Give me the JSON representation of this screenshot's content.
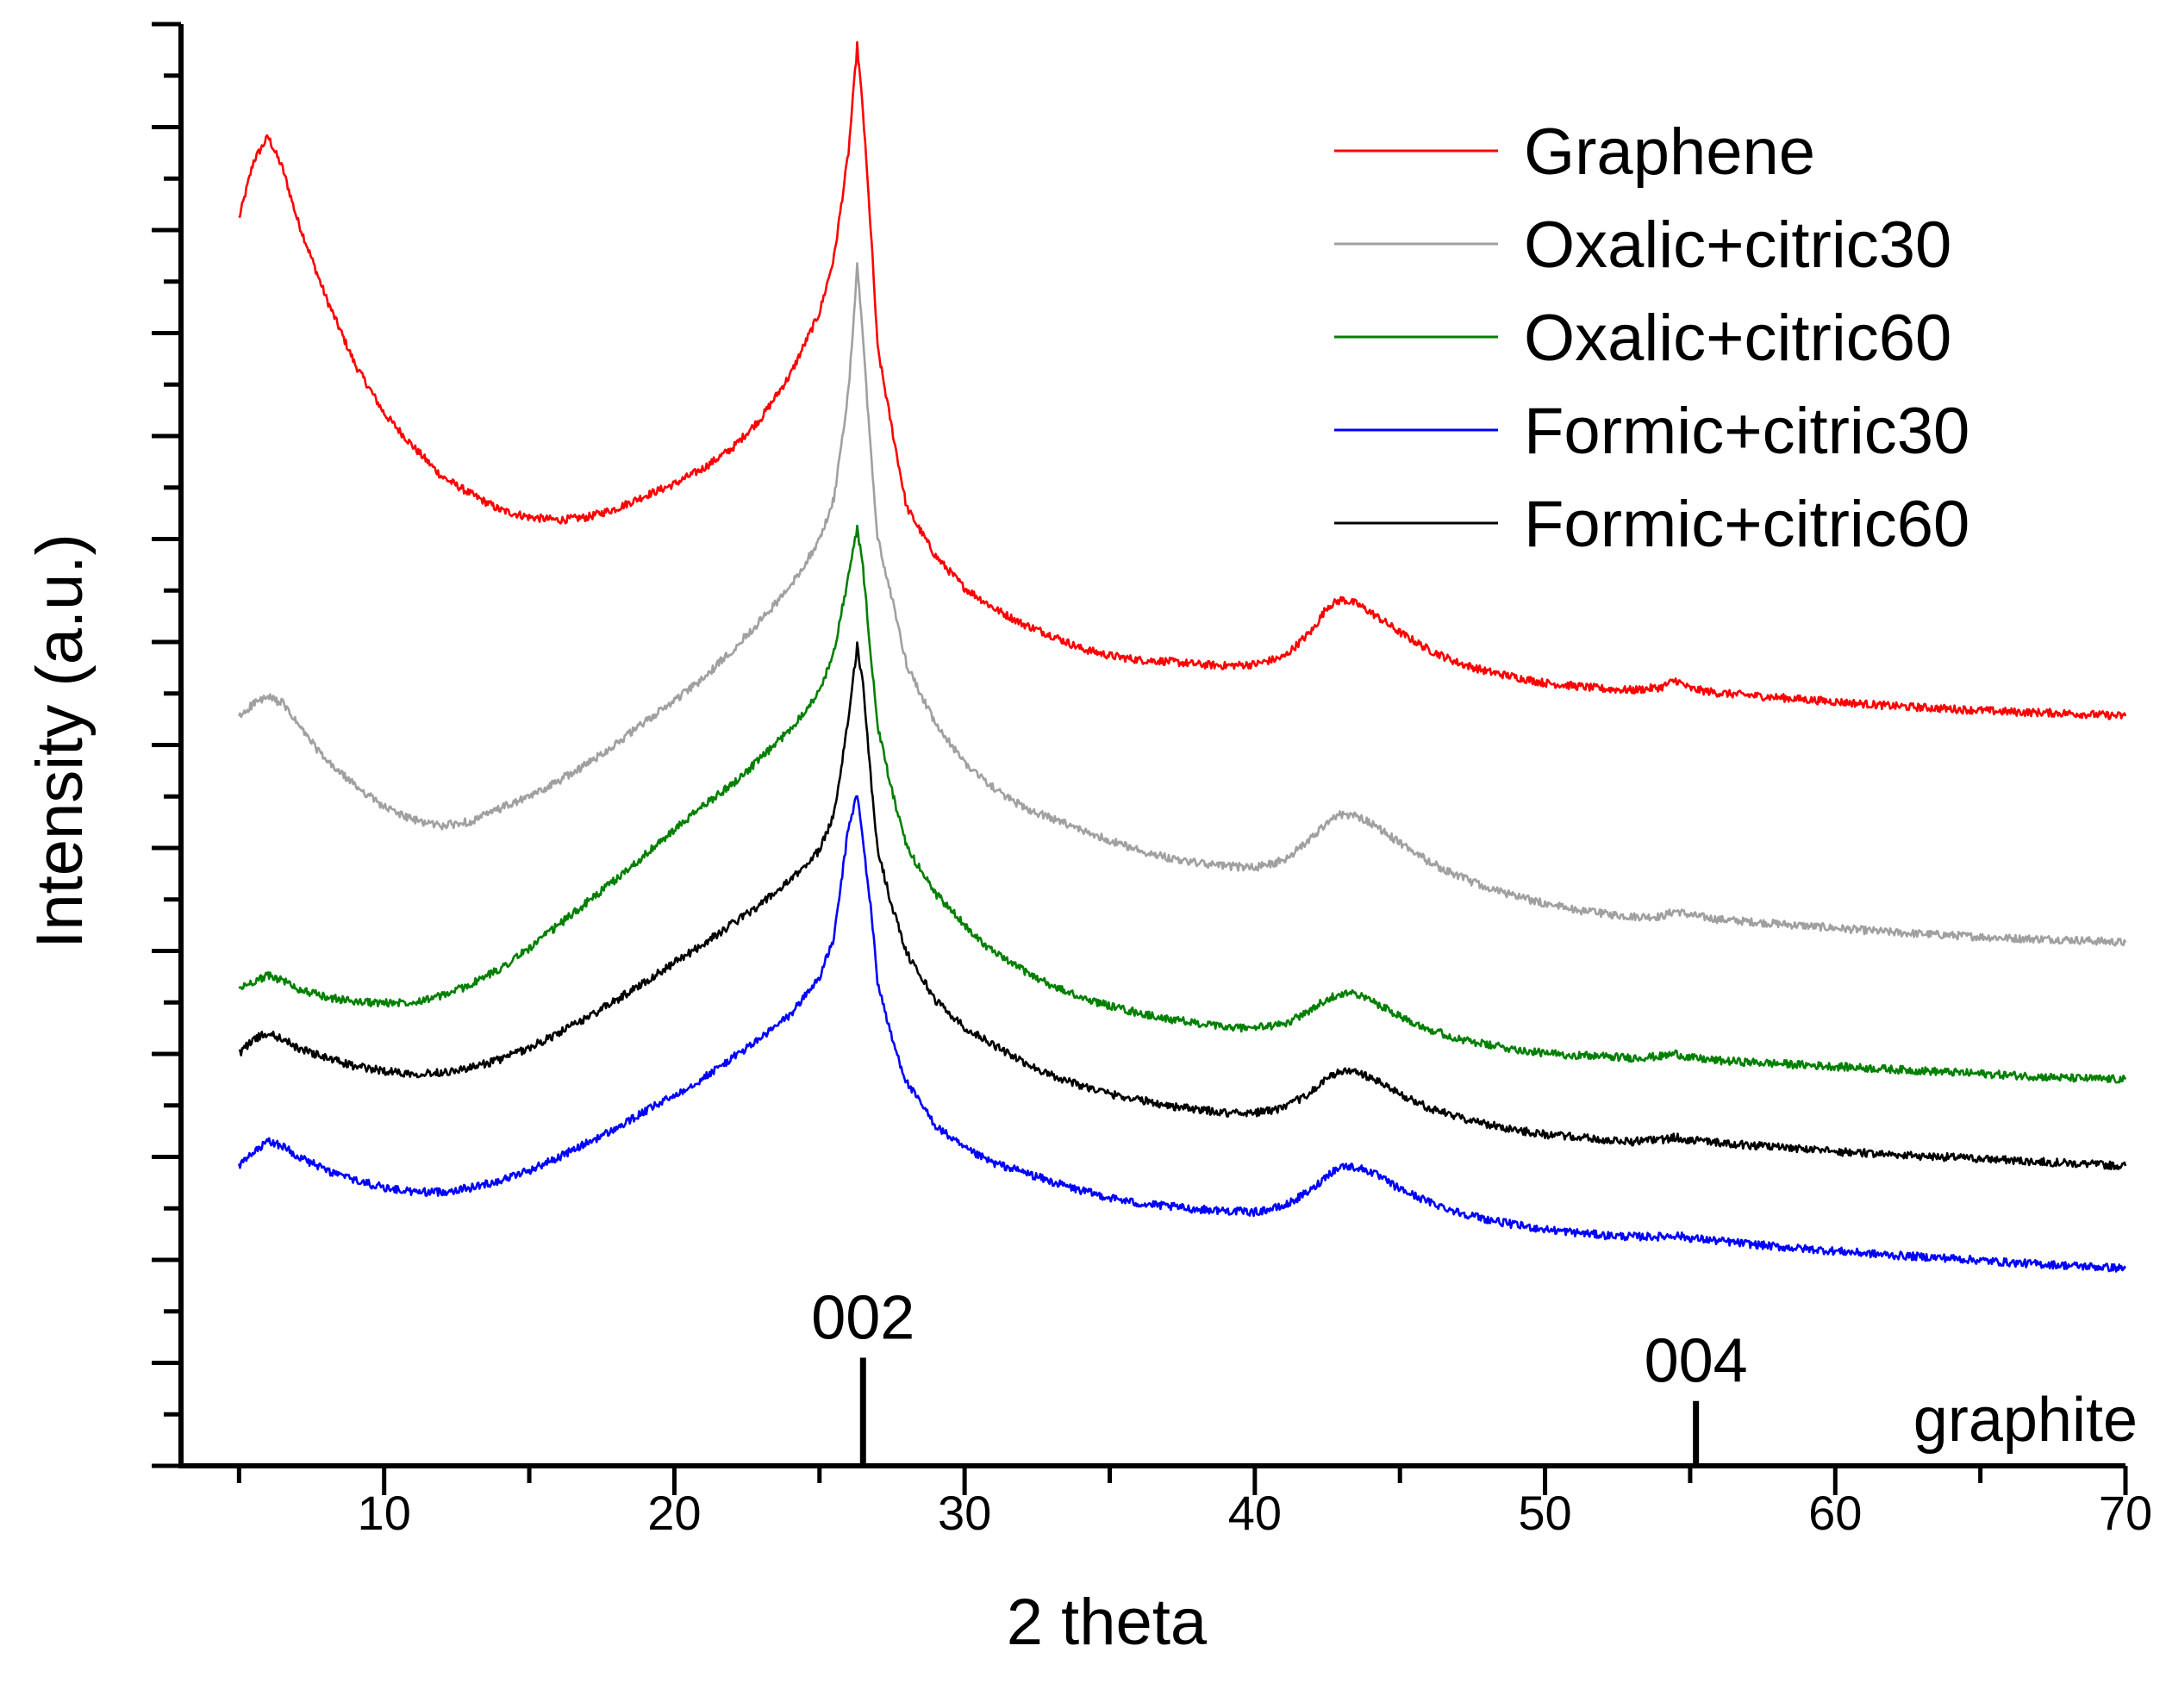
{
  "chart_data": {
    "type": "line",
    "title": "",
    "xlabel": "2 theta",
    "ylabel": "Intensity (a.u.)",
    "xlim": [
      3,
      70
    ],
    "ylim": [
      0,
      100
    ],
    "grid": false,
    "y_tick_labels_shown": false,
    "x_ticks": [
      10,
      20,
      30,
      40,
      50,
      60,
      70
    ],
    "x_tick_labels": [
      "10",
      "20",
      "30",
      "40",
      "50",
      "60",
      "70"
    ],
    "legend": {
      "position": "top-right"
    },
    "series": [
      {
        "name": "Graphene",
        "color": "#ff0000",
        "x": [
          5,
          5.5,
          6,
          6.5,
          7,
          8,
          9,
          10,
          11,
          12,
          13,
          14,
          15,
          16,
          17,
          18,
          19,
          20,
          21,
          22,
          23,
          24,
          25,
          25.5,
          26,
          26.3,
          26.5,
          26.8,
          27,
          27.5,
          28,
          29,
          30,
          31,
          32,
          33,
          34,
          35,
          36,
          37,
          38,
          39,
          40,
          41,
          42,
          42.5,
          43,
          43.5,
          44,
          45,
          46,
          47,
          48,
          49,
          50,
          51,
          52,
          53,
          54,
          54.5,
          55,
          56,
          58,
          60,
          62,
          64,
          66,
          68,
          70
        ],
        "y": [
          86.5,
          90.5,
          92.2,
          90,
          86.5,
          81,
          76.4,
          73,
          70.7,
          68.6,
          67.4,
          66.3,
          65.8,
          65.6,
          65.8,
          66.4,
          67.3,
          68.1,
          69.2,
          70.6,
          72.7,
          75.7,
          80,
          83.8,
          91.1,
          98.5,
          93.9,
          84.7,
          77.6,
          71.9,
          66.5,
          63.1,
          60.9,
          59.5,
          58.4,
          57.6,
          56.7,
          56.2,
          55.9,
          55.8,
          55.6,
          55.5,
          55.6,
          56.1,
          58,
          59.6,
          60.1,
          59.8,
          59.2,
          57.8,
          56.6,
          55.7,
          55.1,
          54.7,
          54.3,
          54.1,
          53.9,
          53.8,
          54,
          54.5,
          53.9,
          53.6,
          53.3,
          53,
          52.7,
          52.5,
          52.3,
          52.2,
          52
        ]
      },
      {
        "name": "Oxalic+citric30",
        "color": "#a0a0a0",
        "x": [
          5,
          5.5,
          6,
          6.5,
          7,
          8,
          9,
          10,
          11,
          12,
          13,
          14,
          15,
          16,
          17,
          18,
          19,
          20,
          21,
          22,
          23,
          24,
          25,
          25.5,
          26,
          26.3,
          26.5,
          26.8,
          27,
          27.5,
          28,
          29,
          30,
          31,
          32,
          33,
          34,
          35,
          36,
          37,
          38,
          39,
          40,
          41,
          42,
          42.5,
          43,
          43.5,
          44,
          45,
          46,
          47,
          48,
          49,
          50,
          51,
          52,
          53,
          54,
          54.5,
          55,
          56,
          58,
          60,
          62,
          64,
          66,
          68,
          70
        ],
        "y": [
          51.9,
          52.9,
          53.3,
          52.9,
          51.5,
          48.9,
          47.2,
          45.7,
          44.8,
          44.4,
          44.7,
          45.6,
          46.4,
          47.5,
          48.7,
          50.1,
          51.6,
          53.1,
          54.6,
          56.6,
          58.7,
          61,
          64.2,
          67.1,
          74.5,
          83.2,
          78.1,
          69.4,
          64.4,
          60.1,
          55.6,
          51.4,
          48.8,
          47,
          45.7,
          44.9,
          44.1,
          43.4,
          42.7,
          42.2,
          41.8,
          41.6,
          41.5,
          42,
          43.6,
          44.7,
          45.2,
          45.1,
          44.6,
          43.2,
          41.9,
          40.9,
          40.1,
          39.5,
          39,
          38.6,
          38.3,
          38.1,
          38.1,
          38.5,
          38.2,
          37.9,
          37.6,
          37.3,
          37,
          36.8,
          36.6,
          36.5,
          36.3
        ]
      },
      {
        "name": "Oxalic+citric60",
        "color": "#008000",
        "x": [
          5,
          5.5,
          6,
          6.5,
          7,
          8,
          9,
          10,
          11,
          12,
          13,
          14,
          15,
          16,
          17,
          18,
          19,
          20,
          21,
          22,
          23,
          24,
          25,
          25.5,
          26,
          26.3,
          26.5,
          26.8,
          27,
          27.5,
          28,
          29,
          30,
          31,
          32,
          33,
          34,
          35,
          36,
          37,
          38,
          39,
          40,
          41,
          42,
          42.5,
          43,
          43.5,
          44,
          45,
          46,
          47,
          48,
          49,
          50,
          51,
          52,
          53,
          54,
          54.5,
          55,
          56,
          58,
          60,
          62,
          64,
          66,
          68,
          70
        ],
        "y": [
          33.1,
          33.6,
          34,
          33.7,
          33.1,
          32.5,
          32.2,
          32.1,
          32.2,
          32.6,
          33.4,
          34.5,
          35.9,
          37.5,
          39.1,
          40.7,
          42.4,
          44.1,
          45.8,
          47.3,
          49.1,
          51.1,
          53.7,
          56.5,
          61.7,
          65.1,
          62.2,
          55.6,
          51.3,
          46.8,
          42.9,
          39.7,
          37.5,
          35.6,
          34.4,
          33.3,
          32.5,
          31.9,
          31.4,
          31,
          30.7,
          30.4,
          30.4,
          30.6,
          31.7,
          32.4,
          32.8,
          32.7,
          32.3,
          31.2,
          30.3,
          29.6,
          29.2,
          28.9,
          28.6,
          28.5,
          28.4,
          28.3,
          28.4,
          28.6,
          28.3,
          28.1,
          27.9,
          27.7,
          27.5,
          27.3,
          27.1,
          26.9,
          26.8
        ]
      },
      {
        "name": "Formic+citric30",
        "color": "#0000ff",
        "x": [
          5,
          5.5,
          6,
          6.5,
          7,
          8,
          9,
          10,
          11,
          12,
          13,
          14,
          15,
          16,
          17,
          18,
          19,
          20,
          21,
          22,
          23,
          24,
          25,
          25.5,
          26,
          26.3,
          26.5,
          26.8,
          27,
          27.5,
          28,
          29,
          30,
          31,
          32,
          33,
          34,
          35,
          36,
          37,
          38,
          39,
          40,
          41,
          42,
          42.5,
          43,
          43.5,
          44,
          45,
          46,
          47,
          48,
          49,
          50,
          51,
          52,
          53,
          54,
          54.5,
          55,
          56,
          58,
          60,
          62,
          64,
          66,
          68,
          70
        ],
        "y": [
          20.8,
          21.7,
          22.5,
          22.2,
          21.5,
          20.5,
          19.8,
          19.3,
          19,
          19,
          19.3,
          19.8,
          20.5,
          21.4,
          22.4,
          23.4,
          24.6,
          25.7,
          26.9,
          28.3,
          29.7,
          31.3,
          33.9,
          36.6,
          44.3,
          46.6,
          43.3,
          38.1,
          33.6,
          29.6,
          26.6,
          23.6,
          22,
          21,
          20.4,
          19.7,
          19.1,
          18.6,
          18.2,
          18,
          17.8,
          17.7,
          17.6,
          18,
          19.2,
          20.2,
          20.8,
          20.7,
          20.4,
          19.2,
          18.3,
          17.6,
          17.1,
          16.7,
          16.4,
          16.2,
          16,
          15.9,
          15.9,
          16,
          15.8,
          15.6,
          15.2,
          14.9,
          14.6,
          14.4,
          14.1,
          13.9,
          13.7
        ]
      },
      {
        "name": "Formic+citric60",
        "color": "#000000",
        "x": [
          5,
          5.5,
          6,
          6.5,
          7,
          8,
          9,
          10,
          11,
          12,
          13,
          14,
          15,
          16,
          17,
          18,
          19,
          20,
          21,
          22,
          23,
          24,
          25,
          25.5,
          26,
          26.3,
          26.5,
          26.8,
          27,
          27.5,
          28,
          29,
          30,
          31,
          32,
          33,
          34,
          35,
          36,
          37,
          38,
          39,
          40,
          41,
          42,
          42.5,
          43,
          43.5,
          44,
          45,
          46,
          47,
          48,
          49,
          50,
          51,
          52,
          53,
          54,
          54.5,
          55,
          56,
          58,
          60,
          62,
          64,
          66,
          68,
          70
        ],
        "y": [
          28.6,
          29.6,
          30,
          29.6,
          29,
          28.3,
          27.7,
          27.4,
          27.2,
          27.3,
          27.6,
          28.2,
          29,
          30,
          31.1,
          32.3,
          33.6,
          34.9,
          36.2,
          37.6,
          39,
          40.6,
          42.7,
          45.2,
          51.9,
          56.9,
          54.1,
          47,
          42.8,
          38.8,
          35.6,
          32.3,
          30.4,
          29.2,
          28,
          27.1,
          26.4,
          25.8,
          25.4,
          25,
          24.7,
          24.5,
          24.5,
          24.8,
          26,
          26.9,
          27.4,
          27.3,
          26.9,
          25.8,
          24.8,
          24.2,
          23.7,
          23.3,
          23,
          22.8,
          22.6,
          22.5,
          22.6,
          22.8,
          22.6,
          22.4,
          22.1,
          21.8,
          21.6,
          21.4,
          21.2,
          21,
          20.8
        ]
      }
    ],
    "reference": {
      "label": "graphite",
      "peaks": [
        {
          "x": 26.5,
          "label": "002",
          "height": 7.5
        },
        {
          "x": 55.2,
          "label": "004",
          "height": 4.5
        }
      ]
    }
  }
}
